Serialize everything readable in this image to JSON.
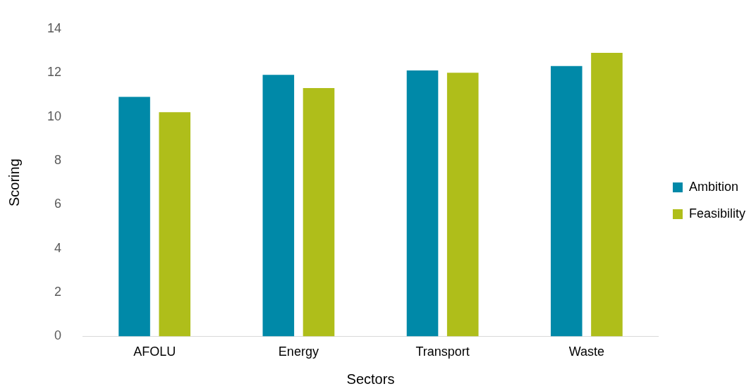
{
  "chart_data": {
    "type": "bar",
    "xlabel": "Sectors",
    "ylabel": "Scoring",
    "categories": [
      "AFOLU",
      "Energy",
      "Transport",
      "Waste"
    ],
    "series": [
      {
        "name": "Ambition",
        "color": "#0089a8",
        "values": [
          10.9,
          11.9,
          12.1,
          12.3
        ]
      },
      {
        "name": "Feasibility",
        "color": "#afbe1a",
        "values": [
          10.2,
          11.3,
          12.0,
          12.9
        ]
      }
    ],
    "ylim": [
      0,
      14
    ],
    "yticks": [
      0,
      2,
      4,
      6,
      8,
      10,
      12,
      14
    ],
    "grid": false,
    "legend": "right"
  }
}
